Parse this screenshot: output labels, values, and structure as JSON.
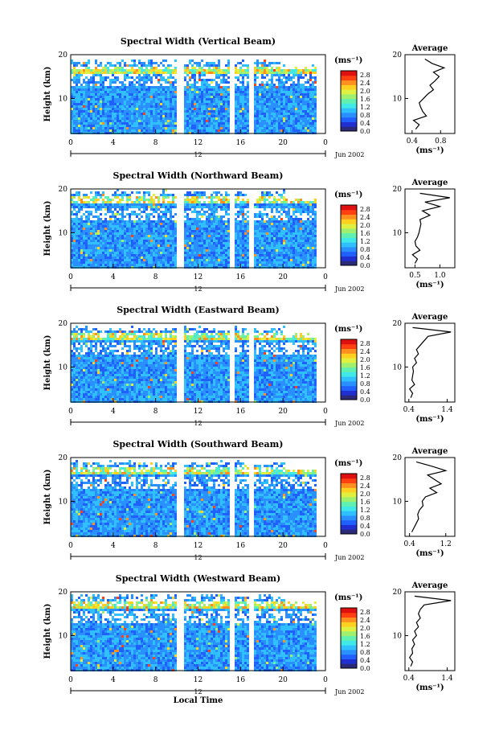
{
  "chart_data": [
    {
      "type": "heatmap",
      "title": "Spectral Width (Vertical Beam)",
      "ylabel": "Height (km)",
      "yticks": [
        "20",
        "10"
      ],
      "xticks": [
        "0",
        "4",
        "8",
        "12",
        "16",
        "20",
        "0"
      ],
      "date_marker": "12",
      "date_label": "Jun 2002",
      "xlim": [
        0,
        24
      ],
      "ylim": [
        2,
        20
      ],
      "colorbar": {
        "unit": "(ms⁻¹)",
        "ticks": [
          "2.8",
          "2.4",
          "2.0",
          "1.6",
          "1.2",
          "0.8",
          "0.4",
          "0.0"
        ],
        "range": [
          0.0,
          3.0
        ]
      },
      "gaps_local_time": [
        [
          9.9,
          10.5
        ],
        [
          14.9,
          15.4
        ],
        [
          16.8,
          17.2
        ]
      ],
      "average_profile": {
        "title": "Average",
        "xlabel": "(ms⁻¹)",
        "xticks": [
          "0.4",
          "0.8"
        ],
        "xlim": [
          0.3,
          1.0
        ],
        "yticks": [
          "20",
          "10"
        ],
        "height": [
          3,
          4,
          5,
          6,
          7,
          8,
          9,
          10,
          11,
          12,
          13,
          14,
          15,
          16,
          17,
          18,
          19
        ],
        "value": [
          0.45,
          0.5,
          0.42,
          0.6,
          0.55,
          0.52,
          0.5,
          0.56,
          0.62,
          0.7,
          0.65,
          0.72,
          0.78,
          0.7,
          0.85,
          0.68,
          0.58
        ]
      }
    },
    {
      "type": "heatmap",
      "title": "Spectral Width (Northward Beam)",
      "ylabel": "Height (km)",
      "yticks": [
        "20",
        "10"
      ],
      "xticks": [
        "0",
        "4",
        "8",
        "12",
        "16",
        "20",
        "0"
      ],
      "date_marker": "12",
      "date_label": "Jun 2002",
      "xlim": [
        0,
        24
      ],
      "ylim": [
        2,
        20
      ],
      "colorbar": {
        "unit": "(ms⁻¹)",
        "ticks": [
          "2.8",
          "2.4",
          "2.0",
          "1.6",
          "1.2",
          "0.8",
          "0.4",
          "0.0"
        ],
        "range": [
          0.0,
          3.0
        ]
      },
      "gaps_local_time": [
        [
          9.9,
          10.5
        ],
        [
          14.9,
          15.4
        ],
        [
          16.8,
          17.2
        ]
      ],
      "average_profile": {
        "title": "Average",
        "xlabel": "(ms⁻¹)",
        "xticks": [
          "0.5",
          "1.0"
        ],
        "xlim": [
          0.3,
          1.3
        ],
        "yticks": [
          "20",
          "10"
        ],
        "height": [
          3,
          4,
          5,
          6,
          7,
          8,
          9,
          10,
          11,
          12,
          13,
          14,
          15,
          16,
          17,
          18,
          19
        ],
        "value": [
          0.5,
          0.55,
          0.45,
          0.6,
          0.52,
          0.5,
          0.55,
          0.58,
          0.6,
          0.62,
          0.6,
          0.8,
          0.65,
          1.0,
          0.7,
          1.2,
          0.6
        ]
      }
    },
    {
      "type": "heatmap",
      "title": "Spectral Width (Eastward Beam)",
      "ylabel": "Height (km)",
      "yticks": [
        "20",
        "10"
      ],
      "xticks": [
        "0",
        "4",
        "8",
        "12",
        "16",
        "20",
        "0"
      ],
      "date_marker": "12",
      "date_label": "Jun 2002",
      "xlim": [
        0,
        24
      ],
      "ylim": [
        2,
        20
      ],
      "colorbar": {
        "unit": "(ms⁻¹)",
        "ticks": [
          "2.8",
          "2.4",
          "2.0",
          "1.6",
          "1.2",
          "0.8",
          "0.4",
          "0.0"
        ],
        "range": [
          0.0,
          3.0
        ]
      },
      "gaps_local_time": [
        [
          9.9,
          10.5
        ],
        [
          14.9,
          15.4
        ],
        [
          16.8,
          17.2
        ]
      ],
      "average_profile": {
        "title": "Average",
        "xlabel": "(ms⁻¹)",
        "xticks": [
          "0.4",
          "1.4"
        ],
        "xlim": [
          0.3,
          1.6
        ],
        "yticks": [
          "20",
          "10"
        ],
        "height": [
          3,
          4,
          5,
          6,
          7,
          8,
          9,
          10,
          11,
          12,
          13,
          14,
          15,
          16,
          17,
          18,
          19
        ],
        "value": [
          0.45,
          0.5,
          0.42,
          0.55,
          0.48,
          0.5,
          0.52,
          0.5,
          0.6,
          0.55,
          0.65,
          0.6,
          0.7,
          0.8,
          0.9,
          1.5,
          0.5
        ]
      }
    },
    {
      "type": "heatmap",
      "title": "Spectral Width (Southward Beam)",
      "ylabel": "Height (km)",
      "yticks": [
        "20",
        "10"
      ],
      "xticks": [
        "0",
        "4",
        "8",
        "12",
        "16",
        "20",
        "0"
      ],
      "date_marker": "12",
      "date_label": "Jun 2002",
      "xlim": [
        0,
        24
      ],
      "ylim": [
        2,
        20
      ],
      "colorbar": {
        "unit": "(ms⁻¹)",
        "ticks": [
          "2.8",
          "2.4",
          "2.0",
          "1.6",
          "1.2",
          "0.8",
          "0.4",
          "0.0"
        ],
        "range": [
          0.0,
          3.0
        ]
      },
      "gaps_local_time": [
        [
          9.9,
          10.5
        ],
        [
          14.9,
          15.4
        ],
        [
          16.8,
          17.2
        ]
      ],
      "average_profile": {
        "title": "Average",
        "xlabel": "(ms⁻¹)",
        "xticks": [
          "0.4",
          "1.2"
        ],
        "xlim": [
          0.3,
          1.4
        ],
        "yticks": [
          "20",
          "10"
        ],
        "height": [
          3,
          4,
          5,
          6,
          7,
          8,
          9,
          10,
          11,
          12,
          13,
          14,
          15,
          16,
          17,
          18,
          19
        ],
        "value": [
          0.45,
          0.5,
          0.55,
          0.6,
          0.58,
          0.62,
          0.7,
          0.68,
          0.75,
          1.0,
          0.85,
          1.1,
          0.95,
          0.8,
          1.2,
          0.9,
          0.55
        ]
      }
    },
    {
      "type": "heatmap",
      "title": "Spectral Width (Westward Beam)",
      "ylabel": "Height (km)",
      "yticks": [
        "20",
        "10"
      ],
      "xticks": [
        "0",
        "4",
        "8",
        "12",
        "16",
        "20",
        "0"
      ],
      "date_marker": "12",
      "date_label": "Jun 2002",
      "xlabel": "Local Time",
      "xlim": [
        0,
        24
      ],
      "ylim": [
        2,
        20
      ],
      "colorbar": {
        "unit": "(ms⁻¹)",
        "ticks": [
          "2.8",
          "2.4",
          "2.0",
          "1.6",
          "1.2",
          "0.8",
          "0.4",
          "0.0"
        ],
        "range": [
          0.0,
          3.0
        ]
      },
      "gaps_local_time": [
        [
          9.9,
          10.5
        ],
        [
          14.9,
          15.4
        ],
        [
          16.8,
          17.2
        ]
      ],
      "average_profile": {
        "title": "Average",
        "xlabel": "(ms⁻¹)",
        "xticks": [
          "0.4",
          "1.4"
        ],
        "xlim": [
          0.3,
          1.6
        ],
        "yticks": [
          "20",
          "10"
        ],
        "height": [
          3,
          4,
          5,
          6,
          7,
          8,
          9,
          10,
          11,
          12,
          13,
          14,
          15,
          16,
          17,
          18,
          19
        ],
        "value": [
          0.45,
          0.5,
          0.42,
          0.5,
          0.48,
          0.55,
          0.5,
          0.6,
          0.55,
          0.65,
          0.6,
          0.7,
          0.65,
          0.7,
          0.8,
          1.5,
          0.55
        ]
      }
    }
  ]
}
